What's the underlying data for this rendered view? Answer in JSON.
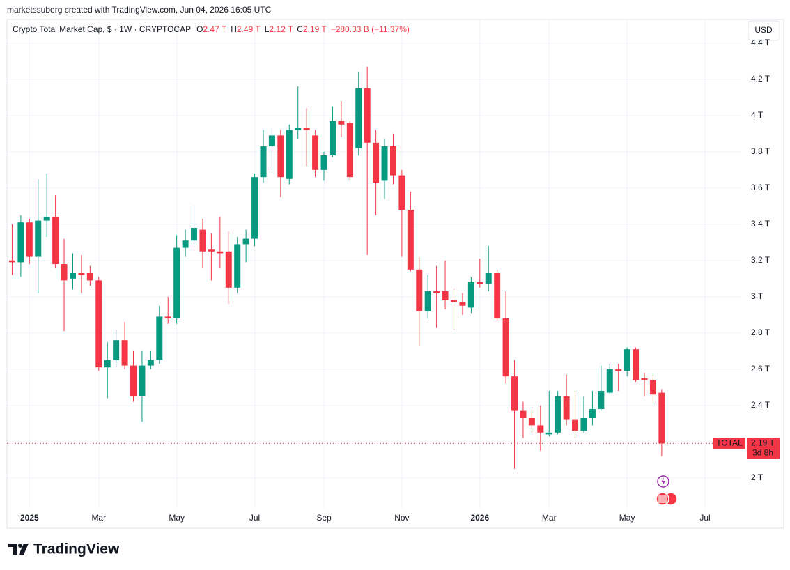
{
  "chart_data": {
    "type": "candlestick",
    "attribution": "marketssuberg created with TradingView.com, Jun 04, 2026 16:05 UTC",
    "title": "Crypto Total Market Cap, $ · 1W · CRYPTOCAP",
    "ohlc_legend": [
      {
        "key": "O",
        "value": "2.47 T"
      },
      {
        "key": "H",
        "value": "2.49 T"
      },
      {
        "key": "L",
        "value": "2.12 T"
      },
      {
        "key": "C",
        "value": "2.19 T"
      }
    ],
    "change": "−280.33 B (−11.37%)",
    "currency": "USD",
    "series_name": "TOTAL",
    "last_price_label": "2.19 T",
    "countdown": "3d 8h",
    "brand": "TradingView",
    "up_color": "#089981",
    "down_color": "#f23645",
    "open": [
      3.2,
      3.19,
      3.41,
      3.22,
      3.42,
      3.44,
      3.18,
      3.1,
      3.13,
      3.13,
      3.09,
      2.61,
      2.65,
      2.76,
      2.62,
      2.45,
      2.62,
      2.65,
      2.89,
      2.88,
      3.27,
      3.31,
      3.37,
      3.26,
      3.25,
      3.25,
      3.05,
      3.29,
      3.32,
      3.66,
      3.83,
      3.89,
      3.65,
      3.92,
      3.93,
      3.89,
      3.7,
      3.78,
      3.97,
      3.96,
      3.82,
      4.15,
      3.85,
      3.64,
      3.83,
      3.67,
      3.48,
      3.15,
      2.92,
      3.03,
      3.03,
      2.98,
      2.97,
      2.94,
      3.08,
      3.07,
      3.13,
      2.88,
      2.56,
      2.37,
      2.33,
      2.29,
      2.24,
      2.25,
      2.45,
      2.32,
      2.26,
      2.33,
      2.38,
      2.47,
      2.6,
      2.59,
      2.71,
      2.55,
      2.54,
      2.47
    ],
    "high": [
      3.4,
      3.45,
      3.43,
      3.65,
      3.68,
      3.56,
      3.32,
      3.24,
      3.23,
      3.17,
      3.11,
      2.75,
      2.82,
      2.86,
      2.7,
      2.7,
      2.7,
      2.95,
      3.0,
      3.34,
      3.37,
      3.5,
      3.43,
      3.35,
      3.44,
      3.36,
      3.33,
      3.37,
      3.68,
      3.92,
      3.93,
      3.92,
      3.95,
      4.16,
      4.04,
      3.92,
      3.8,
      4.05,
      4.08,
      3.97,
      4.24,
      4.27,
      3.92,
      3.87,
      3.9,
      3.7,
      3.58,
      3.22,
      3.12,
      3.17,
      3.2,
      3.04,
      3.02,
      3.11,
      3.21,
      3.28,
      3.15,
      3.03,
      2.65,
      2.42,
      2.38,
      2.4,
      2.48,
      2.48,
      2.57,
      2.48,
      2.45,
      2.48,
      2.62,
      2.63,
      2.63,
      2.72,
      2.72,
      2.58,
      2.57,
      2.49
    ],
    "low": [
      3.12,
      3.11,
      3.18,
      3.02,
      3.33,
      3.16,
      2.81,
      3.04,
      3.02,
      3.06,
      2.59,
      2.44,
      2.61,
      2.6,
      2.42,
      2.31,
      2.6,
      2.63,
      2.85,
      2.85,
      3.22,
      3.27,
      3.16,
      3.09,
      3.16,
      2.96,
      3.02,
      3.19,
      3.28,
      3.63,
      3.7,
      3.55,
      3.62,
      3.87,
      3.72,
      3.66,
      3.64,
      3.77,
      3.88,
      3.64,
      3.78,
      3.23,
      3.45,
      3.54,
      3.62,
      3.22,
      3.14,
      2.73,
      2.88,
      2.83,
      2.93,
      2.82,
      2.9,
      2.91,
      3.05,
      3.03,
      2.87,
      2.52,
      2.05,
      2.22,
      2.25,
      2.15,
      2.23,
      2.24,
      2.29,
      2.22,
      2.25,
      2.29,
      2.37,
      2.46,
      2.48,
      2.56,
      2.53,
      2.45,
      2.41,
      2.12
    ],
    "close": [
      3.19,
      3.41,
      3.22,
      3.42,
      3.44,
      3.18,
      3.09,
      3.13,
      3.12,
      3.09,
      2.61,
      2.65,
      2.76,
      2.62,
      2.45,
      2.62,
      2.65,
      2.89,
      2.88,
      3.27,
      3.31,
      3.38,
      3.25,
      3.25,
      3.24,
      3.05,
      3.29,
      3.32,
      3.66,
      3.83,
      3.89,
      3.66,
      3.92,
      3.93,
      3.92,
      3.7,
      3.78,
      3.97,
      3.95,
      3.66,
      4.15,
      3.85,
      3.63,
      3.83,
      3.67,
      3.48,
      3.15,
      2.92,
      3.03,
      3.02,
      2.98,
      2.97,
      2.95,
      3.08,
      3.07,
      3.13,
      2.88,
      2.56,
      2.37,
      2.33,
      2.29,
      2.25,
      2.25,
      2.45,
      2.32,
      2.26,
      2.33,
      2.38,
      2.48,
      2.6,
      2.59,
      2.71,
      2.54,
      2.54,
      2.46,
      2.19
    ],
    "xlim": [
      -0.6,
      84.1
    ],
    "xticks": [
      {
        "value": 2,
        "label": "2025"
      },
      {
        "value": 10,
        "label": "Mar"
      },
      {
        "value": 19,
        "label": "May"
      },
      {
        "value": 28,
        "label": "Jul"
      },
      {
        "value": 36,
        "label": "Sep"
      },
      {
        "value": 45,
        "label": "Nov"
      },
      {
        "value": 54,
        "label": "2026"
      },
      {
        "value": 62,
        "label": "Mar"
      },
      {
        "value": 71,
        "label": "May"
      },
      {
        "value": 80,
        "label": "Jul"
      }
    ],
    "ylim": [
      1.83,
      4.53
    ],
    "yticks": [
      {
        "value": 2,
        "label": "2 T"
      },
      {
        "value": 2.2,
        "label": "2.2 T"
      },
      {
        "value": 2.4,
        "label": "2.4 T"
      },
      {
        "value": 2.6,
        "label": "2.6 T"
      },
      {
        "value": 2.8,
        "label": "2.8 T"
      },
      {
        "value": 3,
        "label": "3 T"
      },
      {
        "value": 3.2,
        "label": "3.2 T"
      },
      {
        "value": 3.4,
        "label": "3.4 T"
      },
      {
        "value": 3.6,
        "label": "3.6 T"
      },
      {
        "value": 3.8,
        "label": "3.8 T"
      },
      {
        "value": 4,
        "label": "4 T"
      },
      {
        "value": 4.2,
        "label": "4.2 T"
      },
      {
        "value": 4.4,
        "label": "4.4 T"
      }
    ],
    "grid": true
  }
}
